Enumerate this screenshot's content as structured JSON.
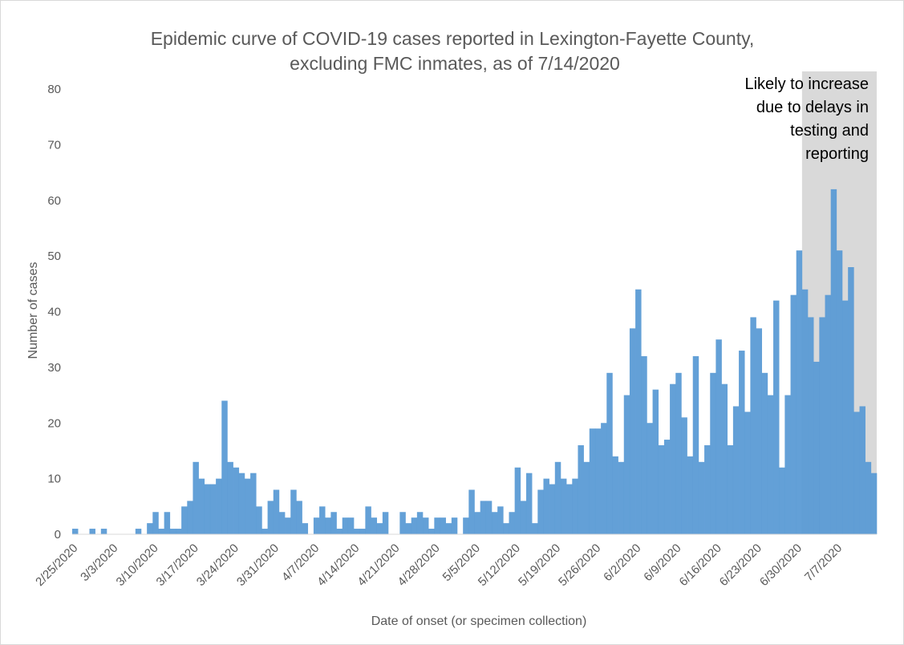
{
  "chart_data": {
    "type": "bar",
    "title_lines": [
      "Epidemic curve of COVID-19 cases reported in Lexington-Fayette County,",
      "excluding FMC inmates, as of 7/14/2020"
    ],
    "xlabel": "Date of onset (or specimen collection)",
    "ylabel": "Number of cases",
    "ylim": [
      0,
      80
    ],
    "yticks": [
      0,
      10,
      20,
      30,
      40,
      50,
      60,
      70,
      80
    ],
    "x_start": "2/25/2020",
    "x_end": "7/13/2020",
    "x_tick_labels": [
      "2/25/2020",
      "3/3/2020",
      "3/10/2020",
      "3/17/2020",
      "3/24/2020",
      "3/31/2020",
      "4/7/2020",
      "4/14/2020",
      "4/21/2020",
      "4/28/2020",
      "5/5/2020",
      "5/12/2020",
      "5/19/2020",
      "5/26/2020",
      "6/2/2020",
      "6/9/2020",
      "6/16/2020",
      "6/23/2020",
      "6/30/2020",
      "7/7/2020"
    ],
    "grid": false,
    "legend": "none",
    "bar_color": "#5b9bd5",
    "values": [
      1,
      0,
      0,
      1,
      0,
      1,
      0,
      0,
      0,
      0,
      0,
      1,
      0,
      2,
      4,
      1,
      4,
      1,
      1,
      5,
      6,
      13,
      10,
      9,
      9,
      10,
      24,
      13,
      12,
      11,
      10,
      11,
      5,
      1,
      6,
      8,
      4,
      3,
      8,
      6,
      2,
      0,
      3,
      5,
      3,
      4,
      1,
      3,
      3,
      1,
      1,
      5,
      3,
      2,
      4,
      0,
      0,
      4,
      2,
      3,
      4,
      3,
      1,
      3,
      3,
      2,
      3,
      0,
      3,
      8,
      4,
      6,
      6,
      4,
      5,
      2,
      4,
      12,
      6,
      11,
      2,
      8,
      10,
      9,
      13,
      10,
      9,
      10,
      16,
      13,
      19,
      19,
      20,
      29,
      14,
      13,
      25,
      37,
      44,
      32,
      20,
      26,
      16,
      17,
      27,
      29,
      21,
      14,
      32,
      13,
      16,
      29,
      35,
      27,
      16,
      23,
      33,
      22,
      39,
      37,
      29,
      25,
      42,
      12,
      25,
      43,
      51,
      44,
      39,
      31,
      39,
      43,
      62,
      51,
      42,
      48,
      22,
      23,
      13,
      11
    ],
    "shaded_region": {
      "from": "7/1/2020",
      "to": "7/13/2020",
      "color": "#d9d9d9",
      "annotation_lines": [
        "Likely to increase",
        "due to delays in",
        "testing and",
        "reporting"
      ]
    }
  }
}
